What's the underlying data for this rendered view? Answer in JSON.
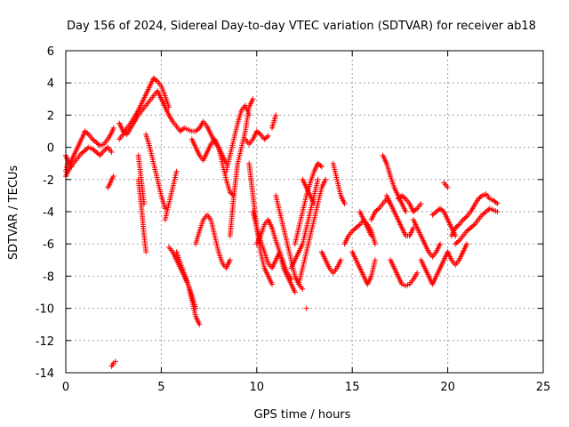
{
  "chart_data": {
    "type": "scatter",
    "title": "Day 156 of 2024, Sidereal Day-to-day VTEC variation (SDTVAR) for receiver ab18",
    "xlabel": "GPS time / hours",
    "ylabel": "SDTVAR / TECUs",
    "xlim": [
      0,
      25
    ],
    "ylim": [
      -14,
      6
    ],
    "xticks": [
      0,
      5,
      10,
      15,
      20,
      25
    ],
    "yticks": [
      -14,
      -12,
      -10,
      -8,
      -6,
      -4,
      -2,
      0,
      2,
      4,
      6
    ],
    "grid": true,
    "marker": "plus",
    "color": "#ff0000",
    "series": [
      {
        "name": "SDTVAR",
        "tracks": [
          {
            "x": [
              0.0,
              0.1,
              0.3,
              0.5,
              0.7,
              0.9,
              1.0,
              1.2,
              1.4,
              1.6,
              1.8,
              2.0,
              2.2,
              2.4,
              2.5
            ],
            "y": [
              -1.5,
              -1.0,
              -0.8,
              -0.3,
              0.2,
              0.7,
              1.0,
              0.8,
              0.5,
              0.3,
              0.1,
              0.2,
              0.5,
              0.9,
              1.2
            ]
          },
          {
            "x": [
              0.0,
              0.2,
              0.4,
              0.6,
              0.8,
              1.0,
              1.2,
              1.4,
              1.6,
              1.8,
              2.0,
              2.2,
              2.4
            ],
            "y": [
              -1.8,
              -1.3,
              -1.0,
              -0.7,
              -0.4,
              -0.2,
              0.0,
              -0.1,
              -0.3,
              -0.5,
              -0.2,
              0.0,
              -0.3
            ]
          },
          {
            "x": [
              0.0,
              0.1,
              0.2,
              0.3
            ],
            "y": [
              -0.5,
              -0.8,
              -1.0,
              -1.2
            ]
          },
          {
            "x": [
              2.2,
              2.3,
              2.4,
              2.5
            ],
            "y": [
              -2.5,
              -2.3,
              -2.0,
              -1.8
            ]
          },
          {
            "x": [
              2.4,
              2.5,
              2.6
            ],
            "y": [
              -13.6,
              -13.4,
              -13.3
            ]
          },
          {
            "x": [
              2.8,
              3.0,
              3.2,
              3.4,
              3.6,
              3.8,
              4.0,
              4.2,
              4.4,
              4.6,
              4.8,
              5.0,
              5.2,
              5.4
            ],
            "y": [
              0.5,
              0.8,
              1.2,
              1.5,
              1.9,
              2.3,
              2.8,
              3.3,
              3.8,
              4.3,
              4.1,
              3.8,
              3.2,
              2.5
            ]
          },
          {
            "x": [
              2.8,
              3.0,
              3.2,
              3.4,
              3.6,
              3.8,
              4.0,
              4.2,
              4.4,
              4.6,
              4.8,
              5.0,
              5.2,
              5.4,
              5.6,
              5.8,
              6.0
            ],
            "y": [
              1.5,
              1.0,
              0.8,
              1.2,
              1.6,
              2.0,
              2.3,
              2.6,
              2.9,
              3.2,
              3.5,
              3.0,
              2.5,
              2.0,
              1.6,
              1.3,
              1.0
            ]
          },
          {
            "x": [
              3.8,
              3.9,
              4.0,
              4.1,
              4.2
            ],
            "y": [
              -2.0,
              -3.0,
              -4.2,
              -5.5,
              -6.5
            ]
          },
          {
            "x": [
              3.8,
              3.9,
              4.0,
              4.1
            ],
            "y": [
              -0.5,
              -1.5,
              -2.5,
              -3.5
            ]
          },
          {
            "x": [
              4.2,
              4.4,
              4.6,
              4.8,
              5.0,
              5.2
            ],
            "y": [
              0.8,
              0.0,
              -1.0,
              -2.0,
              -3.0,
              -3.8
            ]
          },
          {
            "x": [
              5.2,
              5.4,
              5.6,
              5.8
            ],
            "y": [
              -4.5,
              -3.5,
              -2.5,
              -1.5
            ]
          },
          {
            "x": [
              5.4,
              5.6,
              5.8,
              6.0,
              6.2,
              6.4,
              6.6,
              6.8
            ],
            "y": [
              -6.2,
              -6.5,
              -7.0,
              -7.5,
              -8.0,
              -8.5,
              -9.2,
              -10.0
            ]
          },
          {
            "x": [
              5.8,
              6.0,
              6.2,
              6.4,
              6.6,
              6.8,
              7.0
            ],
            "y": [
              -6.5,
              -7.2,
              -7.8,
              -8.5,
              -9.5,
              -10.5,
              -11.0
            ]
          },
          {
            "x": [
              6.0,
              6.2,
              6.4,
              6.6,
              6.8,
              7.0,
              7.2,
              7.4,
              7.6,
              7.8,
              8.0,
              8.2,
              8.4
            ],
            "y": [
              1.0,
              1.2,
              1.1,
              1.0,
              1.0,
              1.2,
              1.6,
              1.3,
              0.8,
              0.3,
              0.0,
              -0.5,
              -1.0
            ]
          },
          {
            "x": [
              6.6,
              6.8,
              7.0,
              7.2,
              7.4,
              7.6,
              7.8,
              8.0,
              8.2,
              8.4,
              8.6,
              8.8
            ],
            "y": [
              0.5,
              0.0,
              -0.5,
              -0.8,
              -0.3,
              0.2,
              0.5,
              0.0,
              -1.0,
              -2.0,
              -2.8,
              -3.0
            ]
          },
          {
            "x": [
              6.8,
              7.0,
              7.2,
              7.4,
              7.6,
              7.8,
              8.0,
              8.2,
              8.4,
              8.6
            ],
            "y": [
              -6.0,
              -5.2,
              -4.5,
              -4.2,
              -4.5,
              -5.5,
              -6.5,
              -7.2,
              -7.5,
              -7.0
            ]
          },
          {
            "x": [
              8.4,
              8.6,
              8.8,
              9.0,
              9.2,
              9.4,
              9.6
            ],
            "y": [
              -1.5,
              -0.5,
              0.5,
              1.5,
              2.3,
              2.6,
              2.0
            ]
          },
          {
            "x": [
              8.6,
              8.8,
              9.0,
              9.2,
              9.4,
              9.6,
              9.8
            ],
            "y": [
              -5.5,
              -3.0,
              -1.0,
              0.0,
              1.0,
              2.5,
              3.0
            ]
          },
          {
            "x": [
              9.4,
              9.6,
              9.8,
              10.0,
              10.2,
              10.4,
              10.6
            ],
            "y": [
              0.5,
              0.2,
              0.5,
              1.0,
              0.8,
              0.5,
              0.7
            ]
          },
          {
            "x": [
              9.6,
              9.8,
              10.0,
              10.2,
              10.4,
              10.6,
              10.8
            ],
            "y": [
              -1.0,
              -3.0,
              -5.0,
              -6.5,
              -7.5,
              -8.0,
              -8.5
            ]
          },
          {
            "x": [
              9.8,
              10.0,
              10.2,
              10.4,
              10.6,
              10.8,
              11.0,
              11.2,
              11.4,
              11.6,
              11.8,
              12.0
            ],
            "y": [
              -4.0,
              -5.0,
              -5.8,
              -6.5,
              -7.2,
              -7.5,
              -7.0,
              -6.5,
              -7.5,
              -8.0,
              -8.5,
              -9.0
            ]
          },
          {
            "x": [
              10.0,
              10.2,
              10.4,
              10.6,
              10.8,
              11.0,
              11.2,
              11.4,
              11.6,
              11.8
            ],
            "y": [
              -6.0,
              -5.5,
              -4.8,
              -4.5,
              -5.0,
              -5.8,
              -6.5,
              -7.2,
              -7.8,
              -8.2
            ]
          },
          {
            "x": [
              10.8,
              11.0
            ],
            "y": [
              1.2,
              2.0
            ]
          },
          {
            "x": [
              11.0,
              11.2,
              11.4,
              11.6,
              11.8,
              12.0,
              12.2,
              12.4
            ],
            "y": [
              -3.0,
              -4.0,
              -5.0,
              -6.0,
              -7.0,
              -8.0,
              -8.5,
              -8.8
            ]
          },
          {
            "x": [
              11.8,
              12.0,
              12.2,
              12.4,
              12.6,
              12.8,
              13.0,
              13.2
            ],
            "y": [
              -7.5,
              -7.0,
              -6.5,
              -6.0,
              -5.0,
              -4.0,
              -3.0,
              -2.0
            ]
          },
          {
            "x": [
              12.0,
              12.2,
              12.4,
              12.6,
              12.8,
              13.0,
              13.2,
              13.4
            ],
            "y": [
              -6.0,
              -5.0,
              -4.0,
              -3.0,
              -2.2,
              -1.5,
              -1.0,
              -1.2
            ]
          },
          {
            "x": [
              12.2,
              12.4,
              12.6,
              12.8,
              13.0,
              13.2,
              13.4,
              13.6
            ],
            "y": [
              -8.5,
              -7.5,
              -6.5,
              -5.5,
              -4.5,
              -3.5,
              -2.5,
              -2.0
            ]
          },
          {
            "x": [
              12.4,
              12.6,
              12.8,
              13.0
            ],
            "y": [
              -2.0,
              -2.5,
              -3.0,
              -3.5
            ]
          },
          {
            "x": [
              12.6
            ],
            "y": [
              -10.0
            ]
          },
          {
            "x": [
              13.4,
              13.6,
              13.8,
              14.0,
              14.2,
              14.4
            ],
            "y": [
              -6.5,
              -7.0,
              -7.5,
              -7.8,
              -7.5,
              -7.0
            ]
          },
          {
            "x": [
              14.0,
              14.2,
              14.4,
              14.6
            ],
            "y": [
              -1.0,
              -2.0,
              -3.0,
              -3.5
            ]
          },
          {
            "x": [
              14.6,
              14.8,
              15.0,
              15.2,
              15.4,
              15.6,
              15.8,
              16.0,
              16.2
            ],
            "y": [
              -6.0,
              -5.5,
              -5.2,
              -5.0,
              -4.8,
              -4.5,
              -4.8,
              -5.2,
              -6.0
            ]
          },
          {
            "x": [
              15.0,
              15.2,
              15.4,
              15.6,
              15.8,
              16.0,
              16.2
            ],
            "y": [
              -6.5,
              -7.0,
              -7.5,
              -8.0,
              -8.5,
              -8.0,
              -7.0
            ]
          },
          {
            "x": [
              15.4,
              15.6,
              15.8,
              16.0
            ],
            "y": [
              -4.0,
              -4.5,
              -5.0,
              -5.5
            ]
          },
          {
            "x": [
              16.0,
              16.2,
              16.4,
              16.6,
              16.8,
              17.0
            ],
            "y": [
              -4.5,
              -4.0,
              -3.8,
              -3.5,
              -3.2,
              -3.5
            ]
          },
          {
            "x": [
              16.6,
              16.8,
              17.0,
              17.2,
              17.4,
              17.6,
              17.8
            ],
            "y": [
              -0.5,
              -1.0,
              -1.8,
              -2.5,
              -3.0,
              -3.5,
              -4.0
            ]
          },
          {
            "x": [
              16.8,
              17.0,
              17.2,
              17.4,
              17.6,
              17.8,
              18.0,
              18.2
            ],
            "y": [
              -3.0,
              -3.5,
              -4.0,
              -4.5,
              -5.0,
              -5.5,
              -5.5,
              -5.0
            ]
          },
          {
            "x": [
              17.0,
              17.2,
              17.4,
              17.6,
              17.8,
              18.0,
              18.2,
              18.4
            ],
            "y": [
              -7.0,
              -7.5,
              -8.0,
              -8.5,
              -8.6,
              -8.5,
              -8.2,
              -7.8
            ]
          },
          {
            "x": [
              17.4,
              17.6,
              17.8,
              18.0,
              18.2,
              18.4,
              18.6
            ],
            "y": [
              -3.2,
              -3.0,
              -3.2,
              -3.5,
              -4.0,
              -3.8,
              -3.5
            ]
          },
          {
            "x": [
              18.2,
              18.4,
              18.6,
              18.8,
              19.0,
              19.2,
              19.4,
              19.6
            ],
            "y": [
              -4.5,
              -5.0,
              -5.5,
              -6.0,
              -6.5,
              -6.8,
              -6.5,
              -6.0
            ]
          },
          {
            "x": [
              18.6,
              18.8,
              19.0,
              19.2,
              19.4,
              19.6,
              19.8,
              20.0
            ],
            "y": [
              -7.0,
              -7.5,
              -8.0,
              -8.5,
              -8.0,
              -7.5,
              -7.0,
              -6.5
            ]
          },
          {
            "x": [
              19.2,
              19.4,
              19.6,
              19.8,
              20.0,
              20.2,
              20.4
            ],
            "y": [
              -4.2,
              -4.0,
              -3.8,
              -4.0,
              -4.5,
              -5.0,
              -5.5
            ]
          },
          {
            "x": [
              19.8,
              20.0
            ],
            "y": [
              -2.2,
              -2.5
            ]
          },
          {
            "x": [
              20.0,
              20.2,
              20.4,
              20.6,
              20.8,
              21.0
            ],
            "y": [
              -6.5,
              -7.0,
              -7.3,
              -7.0,
              -6.5,
              -6.0
            ]
          },
          {
            "x": [
              20.2,
              20.4,
              20.6,
              20.8,
              21.0,
              21.2,
              21.4,
              21.6,
              21.8,
              22.0,
              22.2,
              22.4,
              22.6
            ],
            "y": [
              -5.5,
              -5.0,
              -4.8,
              -4.5,
              -4.3,
              -4.0,
              -3.6,
              -3.2,
              -3.0,
              -2.9,
              -3.2,
              -3.3,
              -3.5
            ]
          },
          {
            "x": [
              20.4,
              20.6,
              20.8,
              21.0,
              21.2,
              21.4,
              21.6,
              21.8,
              22.0,
              22.2,
              22.4,
              22.6
            ],
            "y": [
              -6.0,
              -5.8,
              -5.5,
              -5.2,
              -5.0,
              -4.8,
              -4.5,
              -4.2,
              -4.0,
              -3.8,
              -3.9,
              -4.0
            ]
          }
        ]
      }
    ]
  }
}
